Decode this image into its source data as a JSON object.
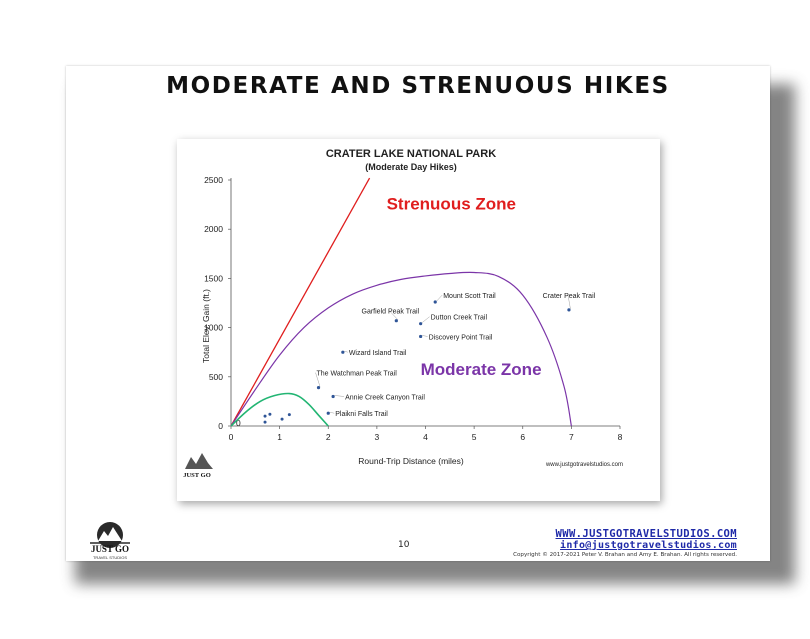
{
  "slide": {
    "title": "MODERATE AND STRENUOUS HIKES",
    "page_number": "10",
    "website": "WWW.JUSTGOTRAVELSTUDIOS.COM",
    "email": "info@justgotravelstudios.com",
    "copyright": "Copyright © 2017-2021 Peter V. Brahan and Amy E. Brahan.  All rights reserved.",
    "logo_text": "JUST GO",
    "logo_subtext": "TRAVEL STUDIOS"
  },
  "colors": {
    "strenuous": "#e01e1e",
    "moderate": "#7b35a8",
    "easy_curve": "#22b573",
    "points": "#2f5597",
    "website": "#1f2aa8"
  },
  "chart_data": {
    "type": "scatter",
    "title": "CRATER LAKE NATIONAL PARK",
    "subtitle": "(Moderate Day Hikes)",
    "xlabel": "Round-Trip Distance (miles)",
    "ylabel": "Total Elev. Gain (ft.)",
    "xlim": [
      0,
      8
    ],
    "ylim": [
      0,
      2500
    ],
    "x_ticks": [
      "0",
      "1",
      "2",
      "3",
      "4",
      "5",
      "6",
      "7",
      "8"
    ],
    "y_ticks": [
      "0",
      "500",
      "1000",
      "1500",
      "2000",
      "2500"
    ],
    "grid": false,
    "watermark": "www.justgotravelstudios.com",
    "origin_label": "0",
    "zones": [
      {
        "name": "Strenuous Zone",
        "label_x": 3.2,
        "label_y": 2200
      },
      {
        "name": "Moderate Zone",
        "label_x": 3.9,
        "label_y": 520
      }
    ],
    "strenuous_line": {
      "x": [
        0,
        2.85
      ],
      "y": [
        0,
        2520
      ]
    },
    "moderate_curve": {
      "x": [
        0,
        0.5,
        1,
        1.5,
        2,
        2.5,
        3,
        3.5,
        4,
        4.5,
        5,
        5.5,
        6,
        6.5,
        6.85,
        7
      ],
      "y": [
        0,
        370,
        720,
        1000,
        1200,
        1340,
        1430,
        1490,
        1525,
        1550,
        1560,
        1520,
        1330,
        900,
        400,
        0
      ]
    },
    "easy_curve": {
      "x": [
        0,
        0.3,
        0.6,
        0.9,
        1.2,
        1.4,
        1.6,
        1.8,
        2.0
      ],
      "y": [
        0,
        140,
        250,
        310,
        330,
        300,
        220,
        110,
        0
      ]
    },
    "labeled_points": [
      {
        "name": "Mount Scott Trail",
        "x": 4.2,
        "y": 1260
      },
      {
        "name": "Crater Peak Trail",
        "x": 6.95,
        "y": 1180
      },
      {
        "name": "Garfield Peak Trail",
        "x": 3.4,
        "y": 1070
      },
      {
        "name": "Dutton Creek Trail",
        "x": 3.9,
        "y": 1040
      },
      {
        "name": "Discovery Point Trail",
        "x": 3.9,
        "y": 910
      },
      {
        "name": "Wizard Island Trail",
        "x": 2.3,
        "y": 750
      },
      {
        "name": "The Watchman Peak Trail",
        "x": 1.8,
        "y": 390
      },
      {
        "name": "Annie Creek Canyon Trail",
        "x": 2.1,
        "y": 300
      },
      {
        "name": "Plaikni Falls Trail",
        "x": 2.0,
        "y": 130
      }
    ],
    "unlabeled_points": [
      {
        "x": 0.7,
        "y": 100
      },
      {
        "x": 0.8,
        "y": 120
      },
      {
        "x": 0.7,
        "y": 40
      },
      {
        "x": 1.05,
        "y": 70
      },
      {
        "x": 1.2,
        "y": 115
      }
    ]
  }
}
